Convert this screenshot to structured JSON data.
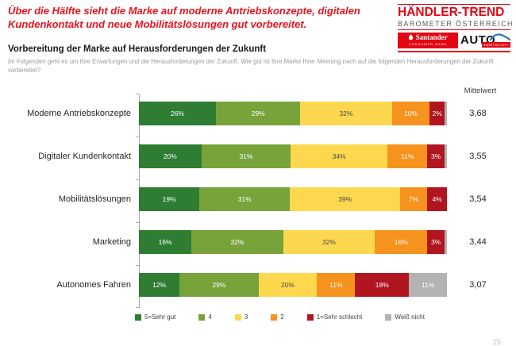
{
  "header": {
    "title": "Über die Hälfte sieht die Marke auf moderne Antriebskonzepte, digitalen Kundenkontakt und neue Mobilitätslösungen gut vorbereitet."
  },
  "logo": {
    "brand": "HÄNDLER-TREND",
    "brand_sub": "BAROMETER ÖSTERREICH",
    "santander": "Santander",
    "santander_sub": "CONSUMER BANK",
    "auto": "AUTO",
    "auto_sub": "&WIRTSCHAFT"
  },
  "section": {
    "heading": "Vorbereitung der Marke auf Herausforderungen der Zukunft",
    "description": "Im Folgenden geht es um Ihre Erwartungen und die Herausforderungen der Zukunft. Wie gut ist Ihre Marke Ihrer Meinung nach auf die folgenden Herausforderungen der Zukunft vorbereitet?"
  },
  "chart_data": {
    "type": "bar",
    "stacked": true,
    "orientation": "horizontal",
    "title": "Vorbereitung der Marke auf Herausforderungen der Zukunft",
    "categories": [
      "Moderne Antriebskonzepte",
      "Digitaler Kundenkontakt",
      "Mobilitätslösungen",
      "Marketing",
      "Autonomes Fahren"
    ],
    "series": [
      {
        "name": "5=Sehr gut",
        "color": "#2e7d32",
        "values": [
          26,
          20,
          19,
          16,
          12
        ]
      },
      {
        "name": "4",
        "color": "#77a33a",
        "values": [
          29,
          31,
          31,
          32,
          29
        ]
      },
      {
        "name": "3",
        "color": "#fdd84e",
        "values": [
          32,
          34,
          39,
          32,
          20
        ],
        "dark_label": true
      },
      {
        "name": "2",
        "color": "#f6921e",
        "values": [
          10,
          11,
          7,
          16,
          11
        ]
      },
      {
        "name": "1=Sehr schlecht",
        "color": "#b01520",
        "values": [
          2,
          3,
          4,
          3,
          18
        ]
      },
      {
        "name": "Weiß nicht",
        "color": "#b3b3b3",
        "values": [
          1,
          1,
          0,
          1,
          11
        ]
      }
    ],
    "mittelwert_label": "Mittelwert",
    "mittelwert": [
      "3,68",
      "3,55",
      "3,54",
      "3,44",
      "3,07"
    ],
    "xlim": [
      0,
      100
    ],
    "value_suffix": "%",
    "label_min": 2,
    "legend_position": "bottom",
    "grid": false
  },
  "colors": {
    "accent_red": "#e30613",
    "title_red": "#e8131e",
    "text_dark": "#262626",
    "text_gray": "#9b9b9b",
    "axis_gray": "#ababab"
  },
  "page_number": "25"
}
